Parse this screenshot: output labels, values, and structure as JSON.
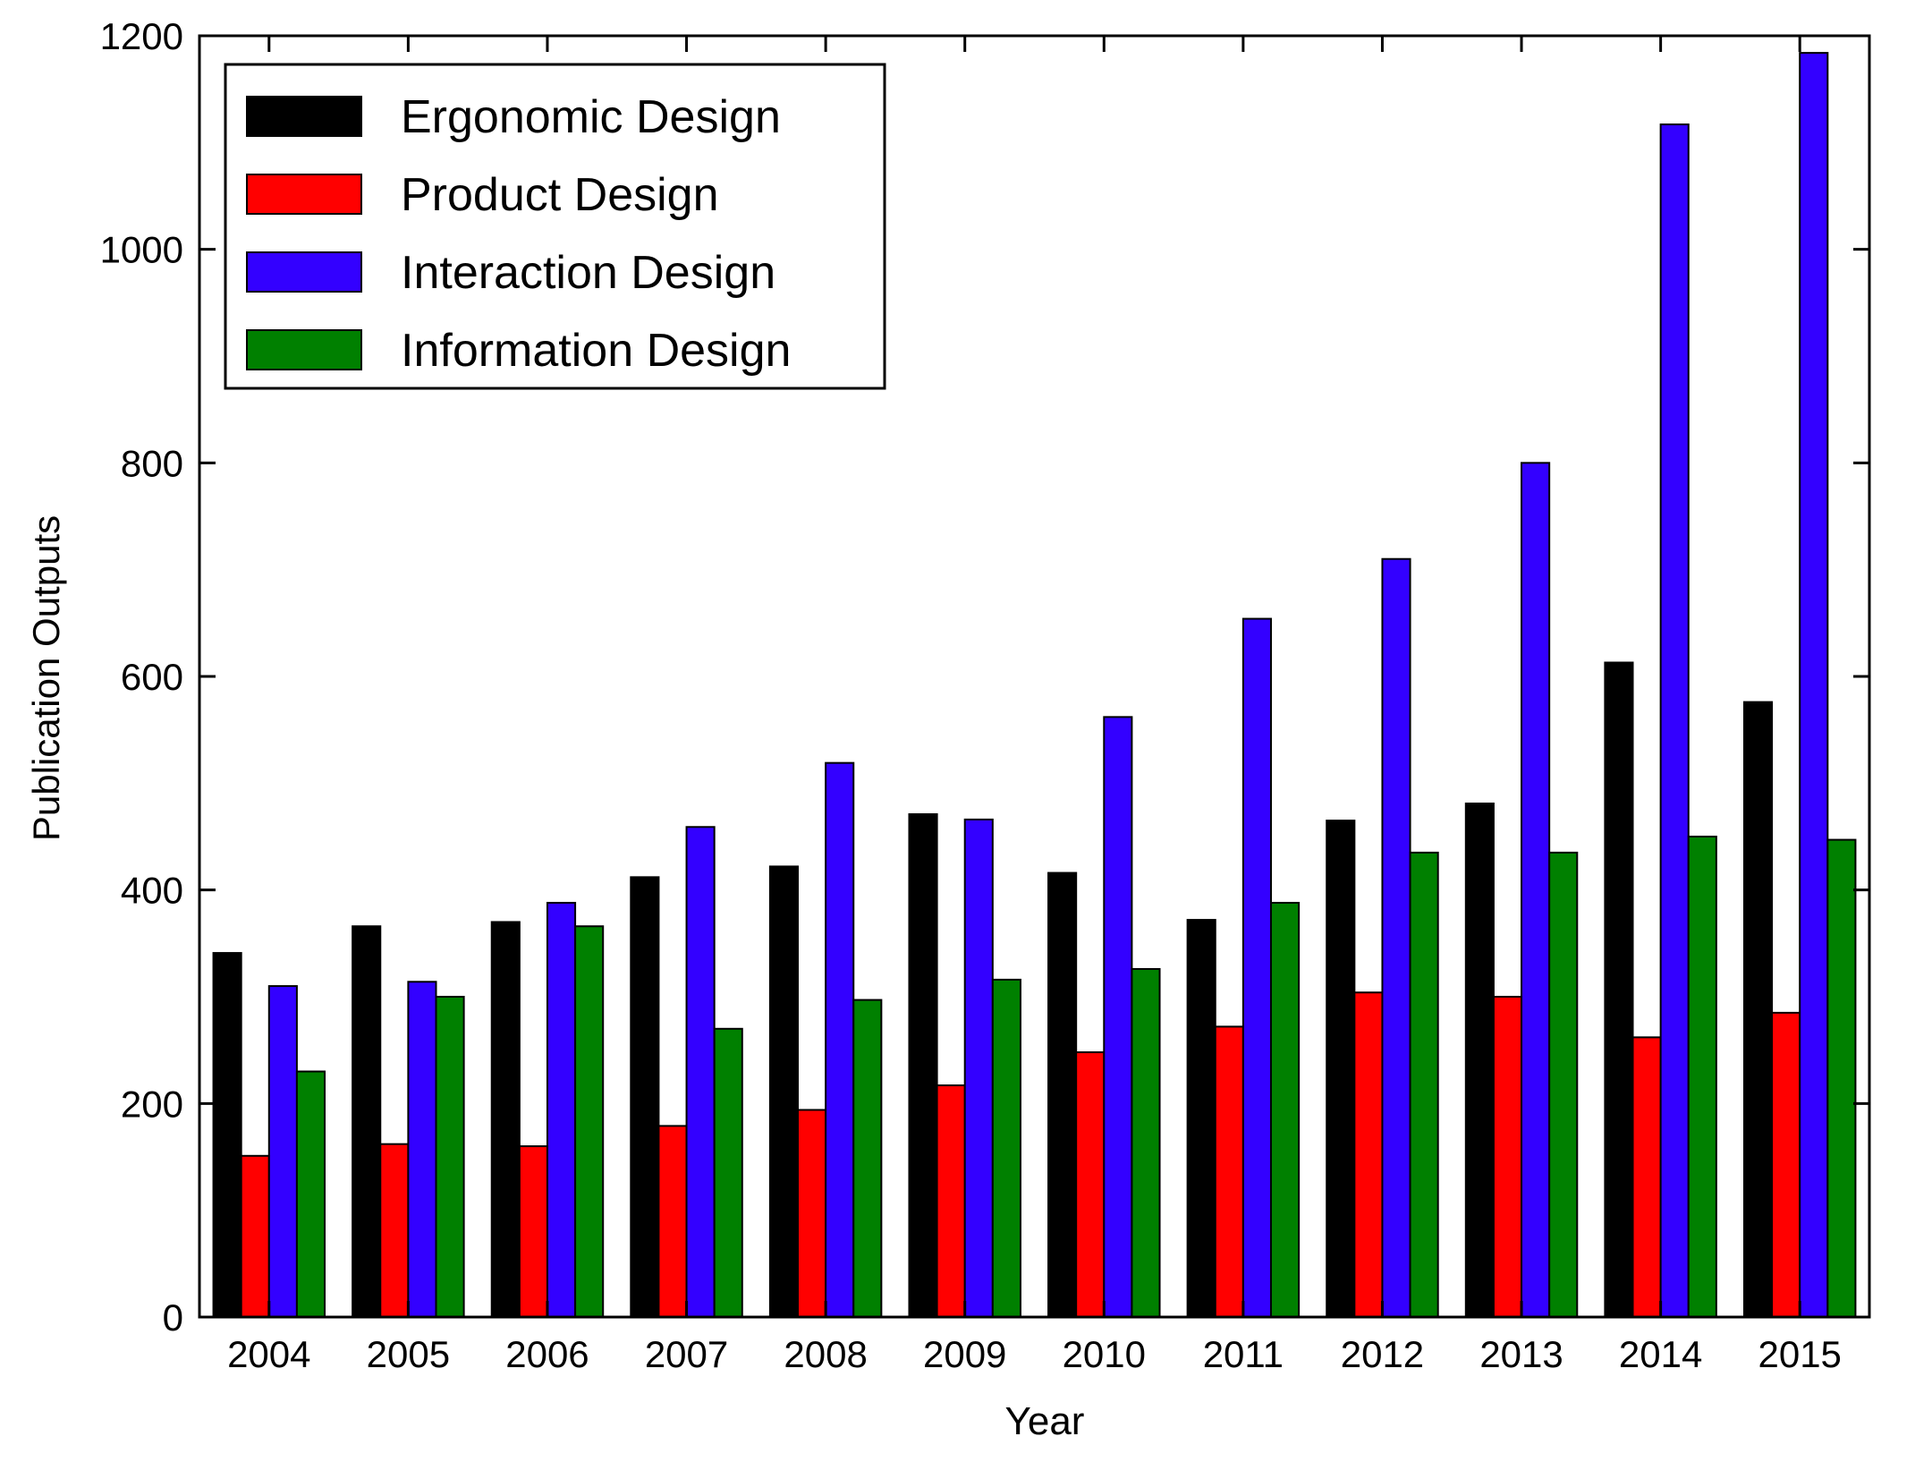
{
  "chart_data": {
    "type": "bar",
    "title": "",
    "xlabel": "Year",
    "ylabel": "Publication Outputs",
    "ylim": [
      0,
      1200
    ],
    "yticks": [
      0,
      200,
      400,
      600,
      800,
      1000,
      1200
    ],
    "categories": [
      "2004",
      "2005",
      "2006",
      "2007",
      "2008",
      "2009",
      "2010",
      "2011",
      "2012",
      "2013",
      "2014",
      "2015"
    ],
    "legend_position": "top-left",
    "grid": false,
    "series": [
      {
        "name": "Ergonomic Design",
        "color": "#000000",
        "values": [
          341,
          366,
          370,
          412,
          422,
          471,
          416,
          372,
          465,
          481,
          613,
          576
        ]
      },
      {
        "name": "Product Design",
        "color": "#ff0000",
        "values": [
          151,
          162,
          160,
          179,
          194,
          217,
          248,
          272,
          304,
          300,
          262,
          285
        ]
      },
      {
        "name": "Interaction Design",
        "color": "#3300ff",
        "values": [
          310,
          314,
          388,
          459,
          519,
          466,
          562,
          654,
          710,
          800,
          1117,
          1184
        ]
      },
      {
        "name": "Information Design",
        "color": "#008000",
        "values": [
          230,
          300,
          366,
          270,
          297,
          316,
          326,
          388,
          435,
          435,
          450,
          447
        ]
      }
    ]
  }
}
